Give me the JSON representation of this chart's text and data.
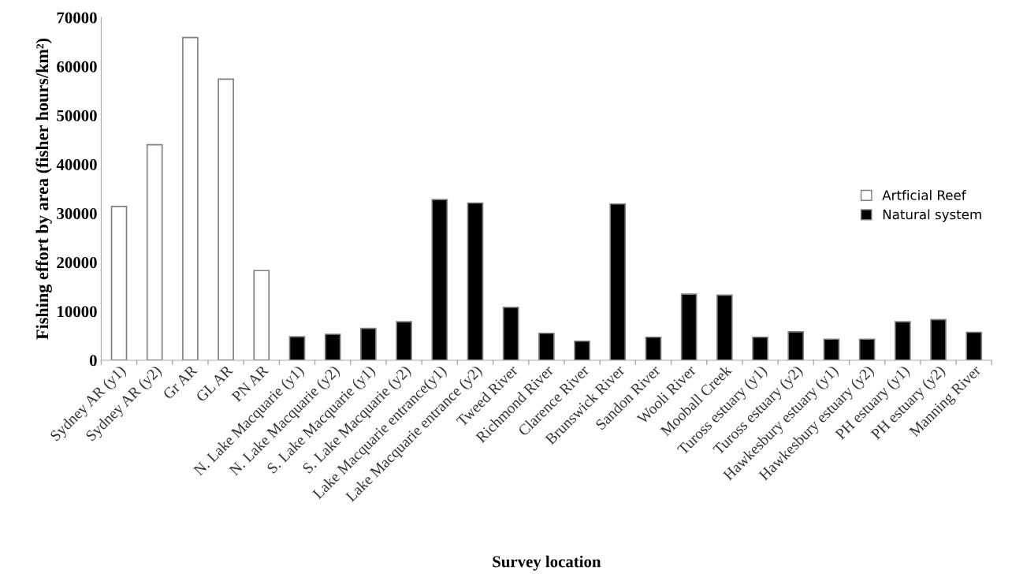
{
  "chart_data": {
    "type": "bar",
    "xlabel": "Survey location",
    "ylabel": "Fishing effort by area (fisher hours/km²)",
    "categories": [
      "Sydney AR (y1)",
      "Sydney AR (y2)",
      "Gr AR",
      "GL AR",
      "PN AR",
      "N. Lake Macquarie (y1)",
      "N. Lake Macquarie (y2)",
      "S. Lake Macquarie (y1)",
      "S. Lake Macquarie (y2)",
      "Lake Macquarie entrance(y1)",
      "Lake Macquarie entrance (y2)",
      "Tweed River",
      "Richmond River",
      "Clarence River",
      "Brunswick River",
      "Sandon River",
      "Wooli River",
      "Mooball Creek",
      "Tuross estuary (y1)",
      "Tuross estuary (y2)",
      "Hawkesbury estuary (y1)",
      "Hawkesbury estuary (y2)",
      "PH estuary (y1)",
      "PH estuary (y2)",
      "Manning River"
    ],
    "series": [
      {
        "name": "Artficial Reef",
        "color": "#ffffff",
        "values": [
          31400,
          44000,
          65900,
          57400,
          18300,
          null,
          null,
          null,
          null,
          null,
          null,
          null,
          null,
          null,
          null,
          null,
          null,
          null,
          null,
          null,
          null,
          null,
          null,
          null,
          null
        ]
      },
      {
        "name": "Natural system",
        "color": "#000000",
        "values": [
          null,
          null,
          null,
          null,
          null,
          4800,
          5300,
          6500,
          7850,
          32800,
          32100,
          10800,
          5500,
          3900,
          31900,
          4700,
          13500,
          13300,
          4700,
          5800,
          4300,
          4300,
          7850,
          8300,
          5700
        ]
      }
    ],
    "ylim": [
      0,
      70000
    ],
    "yticks": [
      0,
      10000,
      20000,
      30000,
      40000,
      50000,
      60000,
      70000
    ],
    "grid": false,
    "legend": "right"
  }
}
